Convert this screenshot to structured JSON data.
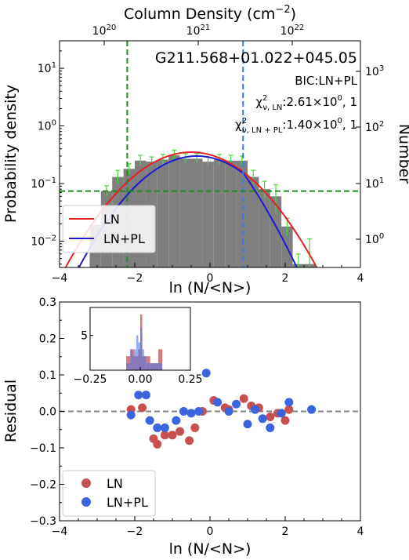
{
  "chart_data": [
    {
      "type": "bar",
      "title": "G211.568+01.022+045.05",
      "annotation_bic": "BIC:LN+PL",
      "annotation_chi_ln": {
        "symbol": "χ",
        "sup": "2",
        "sub": "ν, LN",
        "text": ":2.61×10",
        "exp": "0",
        "tail": ", 1"
      },
      "annotation_chi_lnpl": {
        "symbol": "χ",
        "sup": "2",
        "sub": "ν, LN + PL",
        "text": ":1.40×10",
        "exp": "0",
        "tail": ", 1"
      },
      "xlabel": "ln (N/<N>)",
      "ylabel": "Probability density",
      "ylabel_right": "Number",
      "top_axis_label": "Column Density (cm",
      "top_axis_label_sup": "−2",
      "top_axis_label_close": ")",
      "top_axis_ticks": [
        {
          "base": "10",
          "exp": "20"
        },
        {
          "base": "10",
          "exp": "21"
        },
        {
          "base": "10",
          "exp": "22"
        }
      ],
      "xlim": [
        -4,
        4
      ],
      "ylim_log": [
        0.0035,
        30
      ],
      "yscale": "log",
      "x_ticks": [
        "−4",
        "−2",
        "0",
        "2",
        "4"
      ],
      "y_ticks_left": [
        {
          "base": "10",
          "exp": "−2"
        },
        {
          "base": "10",
          "exp": "−1"
        },
        {
          "base": "10",
          "exp": "0"
        },
        {
          "base": "10",
          "exp": "1"
        }
      ],
      "y_ticks_right": [
        {
          "base": "10",
          "exp": "0"
        },
        {
          "base": "10",
          "exp": "1"
        },
        {
          "base": "10",
          "exp": "2"
        },
        {
          "base": "10",
          "exp": "3"
        }
      ],
      "histogram": {
        "bin_edges": [
          -3.2,
          -2.9,
          -2.6,
          -2.3,
          -2.0,
          -1.7,
          -1.4,
          -1.1,
          -0.8,
          -0.5,
          -0.2,
          0.1,
          0.4,
          0.7,
          1.0,
          1.3,
          1.6,
          1.9,
          2.2,
          2.5,
          2.8
        ],
        "values": [
          0.019,
          0.074,
          0.13,
          0.18,
          0.25,
          0.24,
          0.26,
          0.31,
          0.27,
          0.27,
          0.24,
          0.26,
          0.25,
          0.25,
          0.13,
          0.08,
          0.06,
          0.018,
          0.004,
          0.004
        ],
        "errors_upper": [
          0.007,
          0.017,
          0.04,
          0.04,
          0.06,
          0.05,
          0.06,
          0.07,
          0.06,
          0.06,
          0.05,
          0.06,
          0.06,
          0.05,
          0.04,
          0.03,
          0.035,
          0.007,
          0.002,
          0.007
        ],
        "color": "#7f7f7f",
        "error_color": "#4cd63d"
      },
      "series": [
        {
          "name": "LN",
          "color": "#e8201e",
          "mu": -0.5,
          "sigma": 1.1,
          "amp": 0.35
        },
        {
          "name": "LN+PL",
          "color": "#1f1bd6",
          "mu": -0.35,
          "sigma": 1.05,
          "amp": 0.3,
          "pl_break": 0.9,
          "pl_slope": -2.4
        }
      ],
      "reference_lines": [
        {
          "orientation": "vertical",
          "x": -2.2,
          "color": "#228b22",
          "style": "dashed"
        },
        {
          "orientation": "vertical",
          "x": 0.88,
          "color": "#3c78e6",
          "style": "dashed"
        },
        {
          "orientation": "horizontal",
          "y": 0.074,
          "color": "#228b22",
          "style": "dashed"
        }
      ],
      "legend": {
        "position": "lower-left",
        "entries": [
          "LN",
          "LN+PL"
        ]
      }
    },
    {
      "type": "scatter",
      "xlabel": "ln (N/<N>)",
      "ylabel": "Residual",
      "xlim": [
        -4,
        4
      ],
      "ylim": [
        -0.3,
        0.3
      ],
      "x_ticks": [
        "−4",
        "−2",
        "0",
        "2",
        "4"
      ],
      "y_ticks": [
        "−0.3",
        "−0.2",
        "−0.1",
        "0.0",
        "0.1",
        "0.2",
        "0.3"
      ],
      "zero_line": {
        "y": 0.0,
        "color": "#808080",
        "style": "dashed"
      },
      "series": [
        {
          "name": "LN",
          "color": "#c85050",
          "x": [
            -2.1,
            -1.8,
            -1.5,
            -1.4,
            -1.2,
            -1.0,
            -0.8,
            -0.55,
            -0.4,
            -0.2,
            0.1,
            0.4,
            0.5,
            0.9,
            1.1,
            1.3,
            1.6,
            1.8,
            2.0,
            2.1
          ],
          "y": [
            0.005,
            0.01,
            -0.075,
            -0.09,
            -0.065,
            -0.065,
            -0.055,
            -0.08,
            -0.045,
            0.0,
            0.03,
            0.01,
            0.005,
            0.035,
            0.015,
            0.01,
            -0.015,
            -0.005,
            -0.025,
            0.005
          ]
        },
        {
          "name": "LN+PL",
          "color": "#3c64dc",
          "x": [
            -2.1,
            -1.9,
            -1.7,
            -1.6,
            -1.4,
            -1.2,
            -0.9,
            -0.7,
            -0.5,
            -0.3,
            -0.1,
            0.2,
            0.5,
            0.7,
            1.0,
            1.2,
            1.4,
            1.6,
            1.9,
            2.1,
            2.7
          ],
          "y": [
            -0.01,
            0.045,
            0.045,
            -0.025,
            -0.045,
            -0.045,
            -0.025,
            0.0,
            -0.005,
            0.0,
            0.105,
            0.025,
            0.0,
            0.02,
            -0.035,
            0.005,
            -0.02,
            -0.045,
            -0.005,
            0.025,
            0.005
          ]
        }
      ],
      "legend": {
        "position": "lower-left",
        "entries": [
          "LN",
          "LN+PL"
        ]
      },
      "inset": {
        "type": "histogram",
        "xlim": [
          -0.25,
          0.25
        ],
        "ylim": [
          0,
          9
        ],
        "x_ticks": [
          "−0.25",
          "0.00",
          "0.25"
        ],
        "y_ticks": [
          "5"
        ],
        "LN_bins": {
          "edges": [
            -0.07,
            -0.05,
            -0.03,
            -0.01,
            0.0,
            0.01,
            0.03,
            0.05,
            0.07,
            0.09,
            0.11
          ],
          "counts": [
            2,
            3,
            2,
            3,
            8,
            2,
            2,
            1,
            1,
            3
          ],
          "color": "#c85050"
        },
        "LNPL_bins": {
          "edges": [
            -0.07,
            -0.05,
            -0.04,
            -0.03,
            -0.02,
            -0.01,
            0.0,
            0.01,
            0.02,
            0.03,
            0.05,
            0.07,
            0.11
          ],
          "counts": [
            1,
            3,
            2,
            3,
            5,
            4,
            6,
            3,
            2,
            1,
            1,
            1
          ],
          "color": "#5078e6"
        }
      }
    }
  ]
}
